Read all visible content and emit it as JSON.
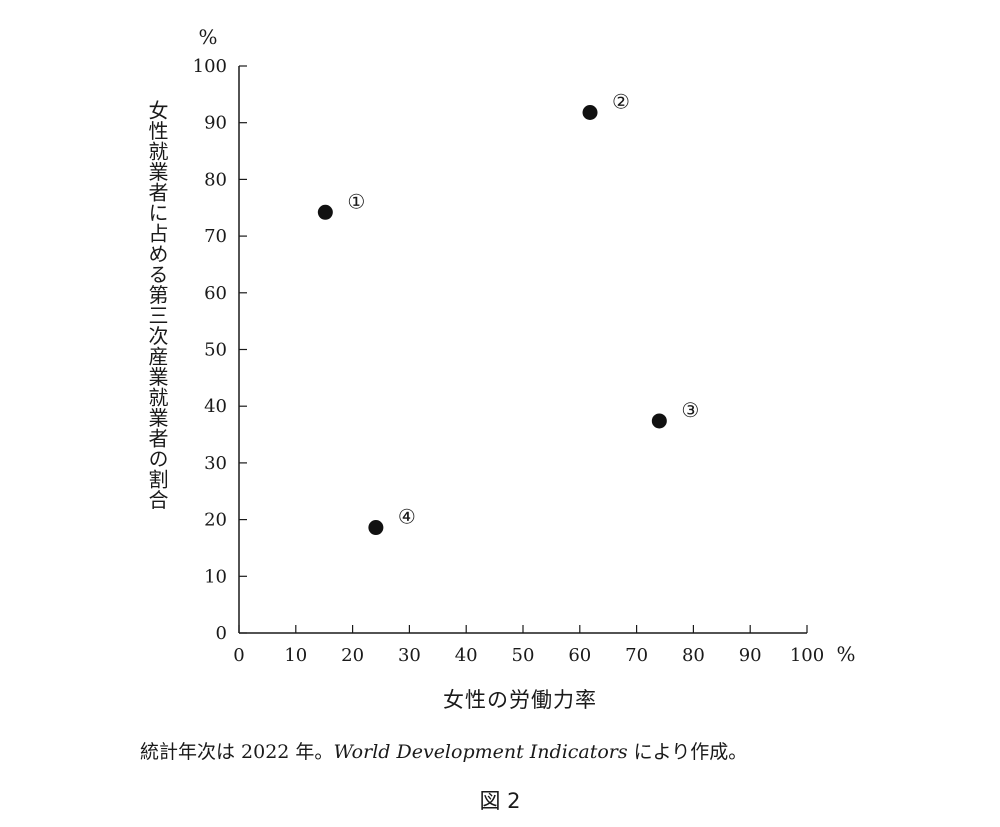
{
  "chart_data": {
    "type": "scatter",
    "title": "",
    "xlabel": "女性の労働力率",
    "ylabel": "女性就業者に占める第三次産業就業者の割合",
    "x_unit": "%",
    "y_unit": "%",
    "xlim": [
      0,
      100
    ],
    "ylim": [
      0,
      100
    ],
    "x_ticks": [
      "0",
      "10",
      "20",
      "30",
      "40",
      "50",
      "60",
      "70",
      "80",
      "90",
      "100"
    ],
    "y_ticks": [
      "0",
      "10",
      "20",
      "30",
      "40",
      "50",
      "60",
      "70",
      "80",
      "90",
      "100"
    ],
    "grid": false,
    "legend": "none",
    "marker_color": "#111111",
    "points": [
      {
        "label": "①",
        "x": 15.2,
        "y": 74.2
      },
      {
        "label": "②",
        "x": 61.8,
        "y": 91.8
      },
      {
        "label": "③",
        "x": 74.0,
        "y": 37.4
      },
      {
        "label": "④",
        "x": 24.1,
        "y": 18.6
      }
    ]
  },
  "note": {
    "prefix": "統計年次は 2022 年。",
    "source_italic": "World Development Indicators",
    "suffix": " により作成。"
  },
  "figure_label": "図 2"
}
